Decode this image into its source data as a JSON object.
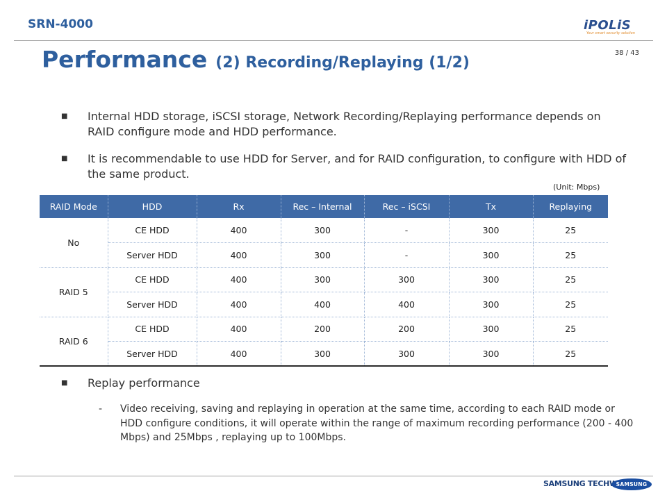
{
  "header": {
    "model": "SRN-4000",
    "page": "38 / 43"
  },
  "logo": {
    "name": "iPOLiS",
    "tagline": "Your smart security solution"
  },
  "title": {
    "main": "Performance",
    "sub": "(2) Recording/Replaying (1/2)"
  },
  "bullets": [
    "Internal HDD storage, iSCSI storage, Network Recording/Replaying performance depends on RAID configure mode and HDD performance.",
    "It is recommendable to use HDD for Server, and for RAID configuration, to configure with HDD of the same product.",
    "Replay performance"
  ],
  "unit_note": "(Unit:  Mbps)",
  "table": {
    "headers": [
      "RAID Mode",
      "HDD",
      "Rx",
      "Rec – Internal",
      "Rec – iSCSI",
      "Tx",
      "Replaying"
    ],
    "groups": [
      {
        "mode": "No",
        "rows": [
          [
            "CE HDD",
            "400",
            "300",
            "-",
            "300",
            "25"
          ],
          [
            "Server HDD",
            "400",
            "300",
            "-",
            "300",
            "25"
          ]
        ]
      },
      {
        "mode": "RAID 5",
        "rows": [
          [
            "CE HDD",
            "400",
            "300",
            "300",
            "300",
            "25"
          ],
          [
            "Server HDD",
            "400",
            "400",
            "400",
            "300",
            "25"
          ]
        ]
      },
      {
        "mode": "RAID 6",
        "rows": [
          [
            "CE HDD",
            "400",
            "200",
            "200",
            "300",
            "25"
          ],
          [
            "Server HDD",
            "400",
            "300",
            "300",
            "300",
            "25"
          ]
        ]
      }
    ]
  },
  "sub_bullet": {
    "dash": "-",
    "text": "Video receiving, saving and replaying in operation at the same time, according to each RAID mode or HDD configure conditions, it will operate within the range of maximum recording performance (200 - 400 Mbps) and 25Mbps , replaying up to 100Mbps."
  },
  "footer": {
    "brand": "SAMSUNG TECHWIN",
    "logo": "SAMSUNG"
  },
  "colors": {
    "accent": "#2e5f9e",
    "table_header": "#3f6aa6"
  }
}
